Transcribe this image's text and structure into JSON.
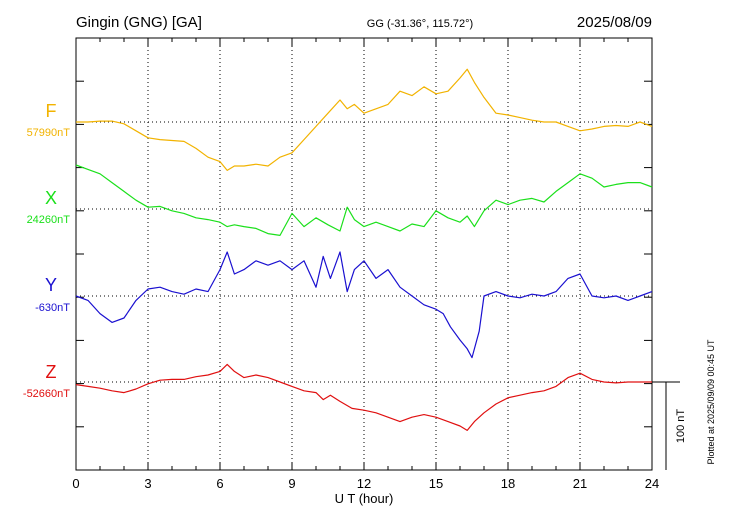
{
  "header": {
    "title": "Gingin (GNG)  [GA]",
    "coords": "GG (-31.36°, 115.72°)",
    "date": "2025/08/09"
  },
  "footer": {
    "plotted": "Plotted at 2025/09/09 00:45 UT"
  },
  "chart_data": {
    "type": "line",
    "xlabel": "U T (hour)",
    "xlim": [
      0,
      24
    ],
    "xticks": [
      "0",
      "3",
      "6",
      "9",
      "12",
      "15",
      "18",
      "21",
      "24"
    ],
    "scale_bar": "100 nT",
    "grid": true,
    "series": [
      {
        "name": "F",
        "baseline_label": "57990nT",
        "color": "#f2b300",
        "baseline": 57990,
        "x": [
          0,
          0.5,
          1,
          1.5,
          2,
          2.5,
          3,
          3.5,
          4,
          4.5,
          5,
          5.5,
          6,
          6.3,
          6.6,
          7,
          7.5,
          8,
          8.5,
          9,
          9.5,
          10,
          10.5,
          11,
          11.3,
          11.6,
          12,
          12.5,
          13,
          13.5,
          14,
          14.5,
          15,
          15.5,
          16,
          16.3,
          16.6,
          17,
          17.5,
          18,
          18.5,
          19,
          19.5,
          20,
          20.5,
          21,
          21.5,
          22,
          22.5,
          23,
          23.5,
          24
        ],
        "y": [
          57990,
          57990,
          57991,
          57991,
          57988,
          57980,
          57972,
          57970,
          57969,
          57968,
          57960,
          57950,
          57945,
          57935,
          57940,
          57940,
          57942,
          57940,
          57950,
          57955,
          57970,
          57985,
          58000,
          58015,
          58005,
          58010,
          58000,
          58005,
          58010,
          58025,
          58020,
          58030,
          58022,
          58025,
          58040,
          58050,
          58035,
          58018,
          58000,
          57998,
          57995,
          57992,
          57990,
          57990,
          57985,
          57980,
          57982,
          57985,
          57986,
          57985,
          57990,
          57985
        ]
      },
      {
        "name": "X",
        "baseline_label": "24260nT",
        "color": "#1be01b",
        "baseline": 24260,
        "x": [
          0,
          0.5,
          1,
          1.5,
          2,
          2.5,
          3,
          3.5,
          4,
          4.5,
          5,
          5.5,
          6,
          6.3,
          6.6,
          7,
          7.5,
          8,
          8.5,
          9,
          9.5,
          10,
          10.5,
          11,
          11.3,
          11.6,
          12,
          12.5,
          13,
          13.5,
          14,
          14.5,
          15,
          15.5,
          16,
          16.3,
          16.6,
          17,
          17.5,
          18,
          18.5,
          19,
          19.5,
          20,
          20.5,
          21,
          21.5,
          22,
          22.5,
          23,
          23.5,
          24
        ],
        "y": [
          24310,
          24305,
          24300,
          24290,
          24280,
          24270,
          24262,
          24263,
          24258,
          24255,
          24250,
          24248,
          24245,
          24240,
          24242,
          24240,
          24238,
          24232,
          24230,
          24255,
          24240,
          24250,
          24242,
          24235,
          24262,
          24248,
          24240,
          24245,
          24240,
          24235,
          24243,
          24240,
          24258,
          24250,
          24245,
          24252,
          24240,
          24258,
          24270,
          24265,
          24270,
          24272,
          24268,
          24280,
          24290,
          24300,
          24295,
          24285,
          24288,
          24290,
          24290,
          24285
        ]
      },
      {
        "name": "Y",
        "baseline_label": "-630nT",
        "color": "#1a10d0",
        "baseline": -630,
        "x": [
          0,
          0.5,
          1,
          1.5,
          2,
          2.5,
          3,
          3.5,
          4,
          4.5,
          5,
          5.5,
          6,
          6.3,
          6.6,
          7,
          7.5,
          8,
          8.5,
          9,
          9.5,
          10,
          10.3,
          10.6,
          11,
          11.3,
          11.6,
          12,
          12.5,
          13,
          13.5,
          14,
          14.5,
          15,
          15.3,
          15.6,
          16,
          16.3,
          16.5,
          16.8,
          17,
          17.5,
          18,
          18.5,
          19,
          19.5,
          20,
          20.5,
          21,
          21.5,
          22,
          22.5,
          23,
          23.5,
          24
        ],
        "y": [
          -630,
          -635,
          -650,
          -660,
          -655,
          -635,
          -622,
          -620,
          -625,
          -628,
          -622,
          -625,
          -600,
          -580,
          -605,
          -600,
          -590,
          -595,
          -590,
          -600,
          -590,
          -620,
          -585,
          -610,
          -580,
          -625,
          -600,
          -590,
          -610,
          -600,
          -620,
          -630,
          -640,
          -645,
          -650,
          -665,
          -680,
          -690,
          -700,
          -670,
          -630,
          -625,
          -630,
          -632,
          -628,
          -630,
          -625,
          -610,
          -605,
          -630,
          -632,
          -630,
          -635,
          -630,
          -625
        ]
      },
      {
        "name": "Z",
        "baseline_label": "-52660nT",
        "color": "#e01010",
        "baseline": -52660,
        "x": [
          0,
          0.5,
          1,
          1.5,
          2,
          2.5,
          3,
          3.5,
          4,
          4.5,
          5,
          5.5,
          6,
          6.3,
          6.6,
          7,
          7.5,
          8,
          8.5,
          9,
          9.5,
          10,
          10.3,
          10.6,
          11,
          11.5,
          12,
          12.5,
          13,
          13.5,
          14,
          14.5,
          15,
          15.5,
          16,
          16.3,
          16.6,
          17,
          17.5,
          18,
          18.5,
          19,
          19.5,
          20,
          20.5,
          21,
          21.5,
          22,
          22.5,
          23,
          23.5,
          24
        ],
        "y": [
          -52663,
          -52665,
          -52667,
          -52670,
          -52672,
          -52668,
          -52662,
          -52658,
          -52657,
          -52657,
          -52654,
          -52652,
          -52648,
          -52640,
          -52648,
          -52655,
          -52652,
          -52655,
          -52660,
          -52665,
          -52670,
          -52672,
          -52680,
          -52675,
          -52682,
          -52690,
          -52692,
          -52695,
          -52700,
          -52705,
          -52700,
          -52697,
          -52700,
          -52705,
          -52710,
          -52715,
          -52705,
          -52695,
          -52685,
          -52678,
          -52675,
          -52672,
          -52670,
          -52665,
          -52655,
          -52650,
          -52657,
          -52660,
          -52661,
          -52660,
          -52660,
          -52660
        ]
      }
    ]
  }
}
